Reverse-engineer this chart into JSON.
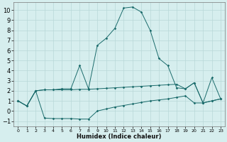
{
  "xlabel": "Humidex (Indice chaleur)",
  "xlim": [
    -0.5,
    23.5
  ],
  "ylim": [
    -1.5,
    10.8
  ],
  "yticks": [
    -1,
    0,
    1,
    2,
    3,
    4,
    5,
    6,
    7,
    8,
    9,
    10
  ],
  "xticks": [
    0,
    1,
    2,
    3,
    4,
    5,
    6,
    7,
    8,
    9,
    10,
    11,
    12,
    13,
    14,
    15,
    16,
    17,
    18,
    19,
    20,
    21,
    22,
    23
  ],
  "bg_color": "#d6eeee",
  "grid_major_color": "#b8d8d8",
  "grid_minor_color": "#c8e4e4",
  "line_color": "#1a6b6b",
  "line1_x": [
    0,
    1,
    2,
    3,
    4,
    5,
    6,
    7,
    8,
    9,
    10,
    11,
    12,
    13,
    14,
    15,
    16,
    17,
    18,
    19,
    20,
    21,
    22,
    23
  ],
  "line1_y": [
    1.0,
    0.5,
    2.0,
    2.1,
    2.1,
    2.2,
    2.2,
    4.5,
    2.2,
    6.5,
    7.2,
    8.2,
    10.2,
    10.3,
    9.8,
    8.0,
    5.2,
    4.5,
    2.3,
    2.2,
    2.8,
    0.8,
    3.3,
    1.2
  ],
  "line2_x": [
    0,
    1,
    2,
    3,
    4,
    5,
    6,
    7,
    8,
    9,
    10,
    11,
    12,
    13,
    14,
    15,
    16,
    17,
    18,
    19,
    20,
    21,
    22,
    23
  ],
  "line2_y": [
    1.0,
    0.5,
    2.0,
    2.1,
    2.1,
    2.1,
    2.1,
    2.15,
    2.15,
    2.2,
    2.25,
    2.3,
    2.35,
    2.4,
    2.45,
    2.5,
    2.55,
    2.6,
    2.65,
    2.2,
    2.8,
    0.8,
    1.0,
    1.2
  ],
  "line3_x": [
    0,
    1,
    2,
    3,
    4,
    5,
    6,
    7,
    8,
    9,
    10,
    11,
    12,
    13,
    14,
    15,
    16,
    17,
    18,
    19,
    20,
    21,
    22,
    23
  ],
  "line3_y": [
    1.0,
    0.5,
    2.0,
    -0.7,
    -0.75,
    -0.75,
    -0.75,
    -0.8,
    -0.8,
    0.0,
    0.2,
    0.4,
    0.55,
    0.7,
    0.85,
    1.0,
    1.1,
    1.2,
    1.35,
    1.5,
    0.8,
    0.8,
    1.0,
    1.2
  ]
}
